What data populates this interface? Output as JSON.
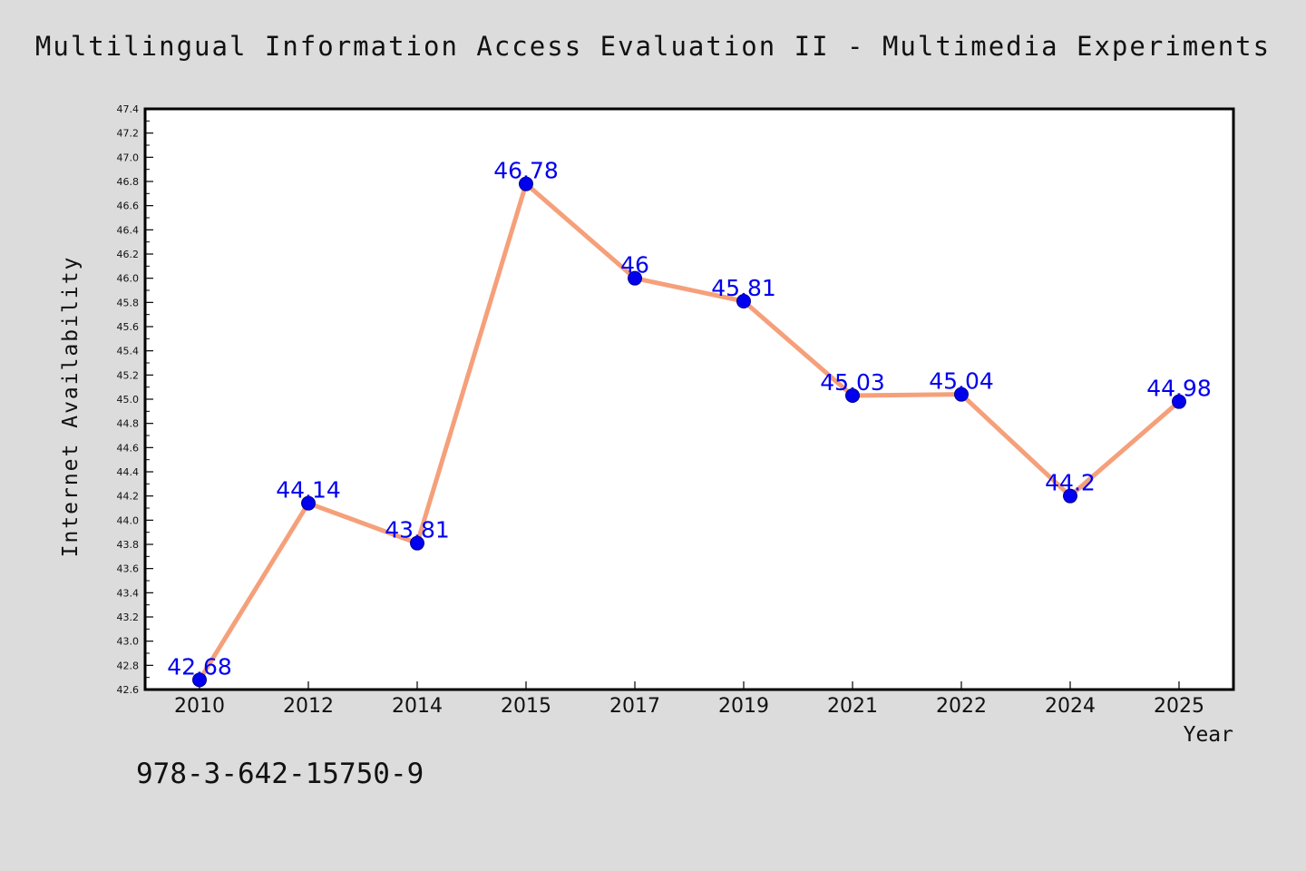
{
  "page": {
    "title": "Multilingual Information Access Evaluation II - Multimedia Experiments",
    "footer": "978-3-642-15750-9"
  },
  "chart_data": {
    "type": "line",
    "title": "Multilingual Information Access Evaluation II - Multimedia Experiments",
    "xlabel": "Year",
    "ylabel": "Internet Availability",
    "categories": [
      "2010",
      "2012",
      "2014",
      "2015",
      "2017",
      "2019",
      "2021",
      "2022",
      "2024",
      "2025"
    ],
    "series": [
      {
        "values": [
          42.68,
          44.14,
          43.81,
          46.78,
          46,
          45.81,
          45.03,
          45.04,
          44.2,
          44.98
        ]
      }
    ],
    "ylim": [
      42.6,
      47.4
    ],
    "ytick_step": 0.2,
    "grid": false,
    "legend": "none",
    "colors": {
      "line": "#f5a07a",
      "marker": "#0000ee",
      "label": "#0000ee",
      "background": "#dcdcdc",
      "plot_bg": "#ffffff"
    }
  }
}
